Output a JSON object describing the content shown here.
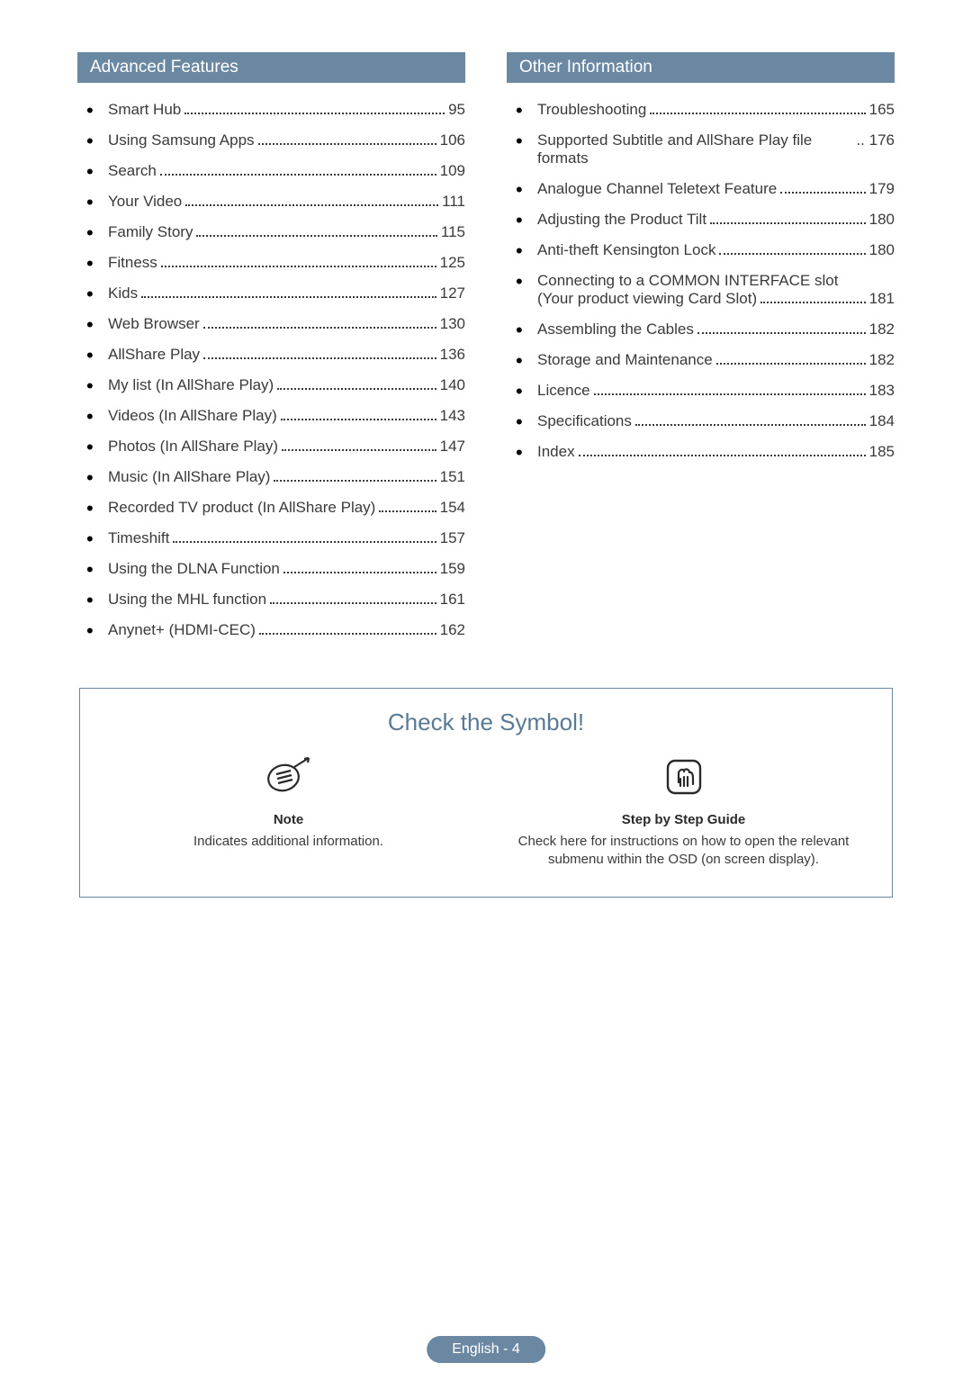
{
  "colors": {
    "header_bg": "#6b88a3",
    "header_text": "#ffffff",
    "body_text": "#3a3a3a",
    "box_border": "#6b88a3",
    "symbol_title": "#5a7a94",
    "page_bg": "#ffffff"
  },
  "typography": {
    "header_fontsize": 19,
    "item_fontsize": 17,
    "symbol_title_fontsize": 26,
    "symbol_heading_fontsize": 15,
    "symbol_desc_fontsize": 15,
    "footer_fontsize": 16
  },
  "sections": {
    "left": {
      "title": "Advanced Features",
      "items": [
        {
          "title": "Smart Hub",
          "page": "95"
        },
        {
          "title": "Using Samsung Apps",
          "page": "106"
        },
        {
          "title": "Search",
          "page": "109"
        },
        {
          "title": "Your Video",
          "page": "111"
        },
        {
          "title": "Family Story",
          "page": "115"
        },
        {
          "title": "Fitness",
          "page": "125"
        },
        {
          "title": "Kids",
          "page": "127"
        },
        {
          "title": "Web Browser",
          "page": "130"
        },
        {
          "title": "AllShare Play",
          "page": "136"
        },
        {
          "title": "My list (In AllShare Play)",
          "page": "140"
        },
        {
          "title": "Videos (In AllShare Play)",
          "page": "143"
        },
        {
          "title": "Photos (In AllShare Play)",
          "page": "147"
        },
        {
          "title": "Music (In AllShare Play)",
          "page": "151"
        },
        {
          "title": "Recorded TV product (In AllShare Play)",
          "page": "154"
        },
        {
          "title": "Timeshift",
          "page": "157"
        },
        {
          "title": "Using the DLNA Function",
          "page": "159"
        },
        {
          "title": "Using the MHL function",
          "page": "161"
        },
        {
          "title": "Anynet+ (HDMI-CEC)",
          "page": "162"
        }
      ]
    },
    "right": {
      "title": "Other Information",
      "items": [
        {
          "title": "Troubleshooting",
          "page": "165"
        },
        {
          "title": "Supported Subtitle and AllShare Play file formats",
          "page": "176",
          "nodots": true
        },
        {
          "title": "Analogue Channel Teletext Feature",
          "page": "179"
        },
        {
          "title": "Adjusting the Product Tilt",
          "page": "180"
        },
        {
          "title": "Anti-theft Kensington Lock",
          "page": "180"
        },
        {
          "title_line1": "Connecting to a COMMON INTERFACE slot",
          "title_line2": "(Your product viewing Card Slot)",
          "page": "181",
          "twoline": true
        },
        {
          "title": "Assembling the Cables",
          "page": "182"
        },
        {
          "title": "Storage and Maintenance",
          "page": "182"
        },
        {
          "title": "Licence",
          "page": "183"
        },
        {
          "title": "Specifications",
          "page": "184"
        },
        {
          "title": "Index",
          "page": "185"
        }
      ]
    }
  },
  "symbol_box": {
    "title": "Check the Symbol!",
    "note": {
      "heading": "Note",
      "desc": "Indicates additional information."
    },
    "guide": {
      "heading": "Step by Step Guide",
      "desc": "Check here for instructions on how to open the relevant submenu within the OSD (on screen display)."
    }
  },
  "footer": "English - 4"
}
